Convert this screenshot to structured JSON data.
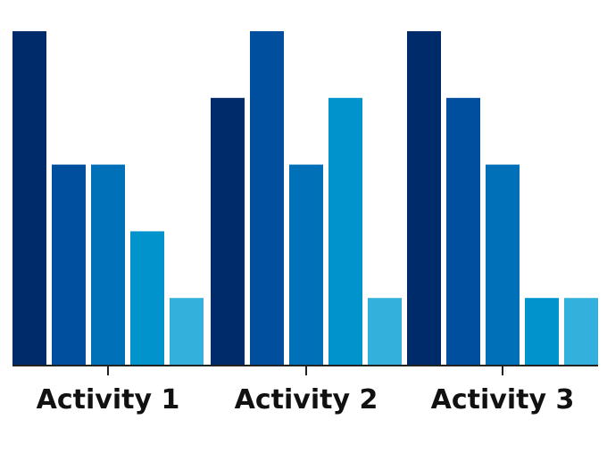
{
  "chart_data": {
    "type": "bar",
    "categories": [
      "Activity 1",
      "Activity 2",
      "Activity 3"
    ],
    "series": [
      {
        "values": [
          5,
          4,
          5
        ]
      },
      {
        "values": [
          3,
          5,
          4
        ]
      },
      {
        "values": [
          3,
          3,
          3
        ]
      },
      {
        "values": [
          2,
          4,
          1
        ]
      },
      {
        "values": [
          1,
          1,
          1
        ]
      }
    ],
    "colors": [
      "#002b6b",
      "#004f9e",
      "#0070b8",
      "#0093cc",
      "#34b0dc"
    ],
    "title": "",
    "xlabel": "",
    "ylabel": "",
    "ylim": [
      0,
      5
    ],
    "grid": false,
    "legend": "none"
  }
}
